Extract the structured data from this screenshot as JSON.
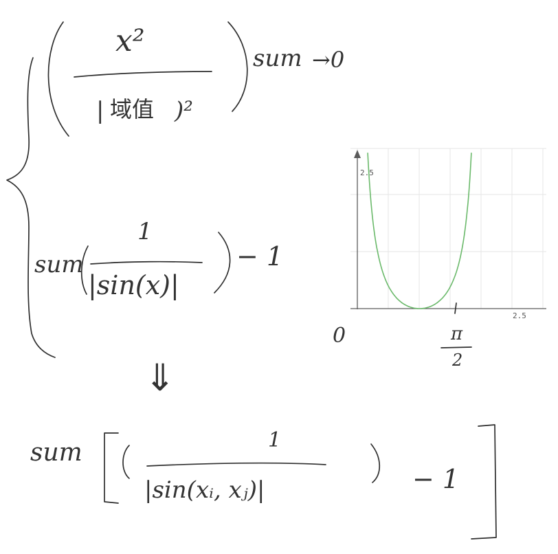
{
  "colors": {
    "ink": "#2f2f2f",
    "curve": "#6ab96a",
    "grid": "#e6e6e6"
  },
  "formula1": {
    "numerator": "x²",
    "denominator_open": "|",
    "denominator_cn": "域值",
    "denominator_close": ")²",
    "suffix": "sum",
    "limit": "→0"
  },
  "formula2": {
    "prefix": "sum",
    "numerator": "1",
    "denominator": "|sin(x)|",
    "suffix": "− 1"
  },
  "implies": "⇓",
  "formula3": {
    "prefix": "sum",
    "numerator": "1",
    "denominator": "|sin(xᵢ, xⱼ)|",
    "suffix": "− 1"
  },
  "origin_label": "0",
  "pi_num": "π",
  "pi_den": "2",
  "chart_data": {
    "type": "line",
    "series": [
      {
        "function": "1/|sin(x)| - 1",
        "color": "#6ab96a"
      }
    ],
    "xlim": [
      0,
      3.14159
    ],
    "ylim": [
      0,
      2.9
    ],
    "x_tick_labels": [
      "2.5"
    ],
    "y_tick_labels": [
      "2.5"
    ],
    "grid": true
  }
}
